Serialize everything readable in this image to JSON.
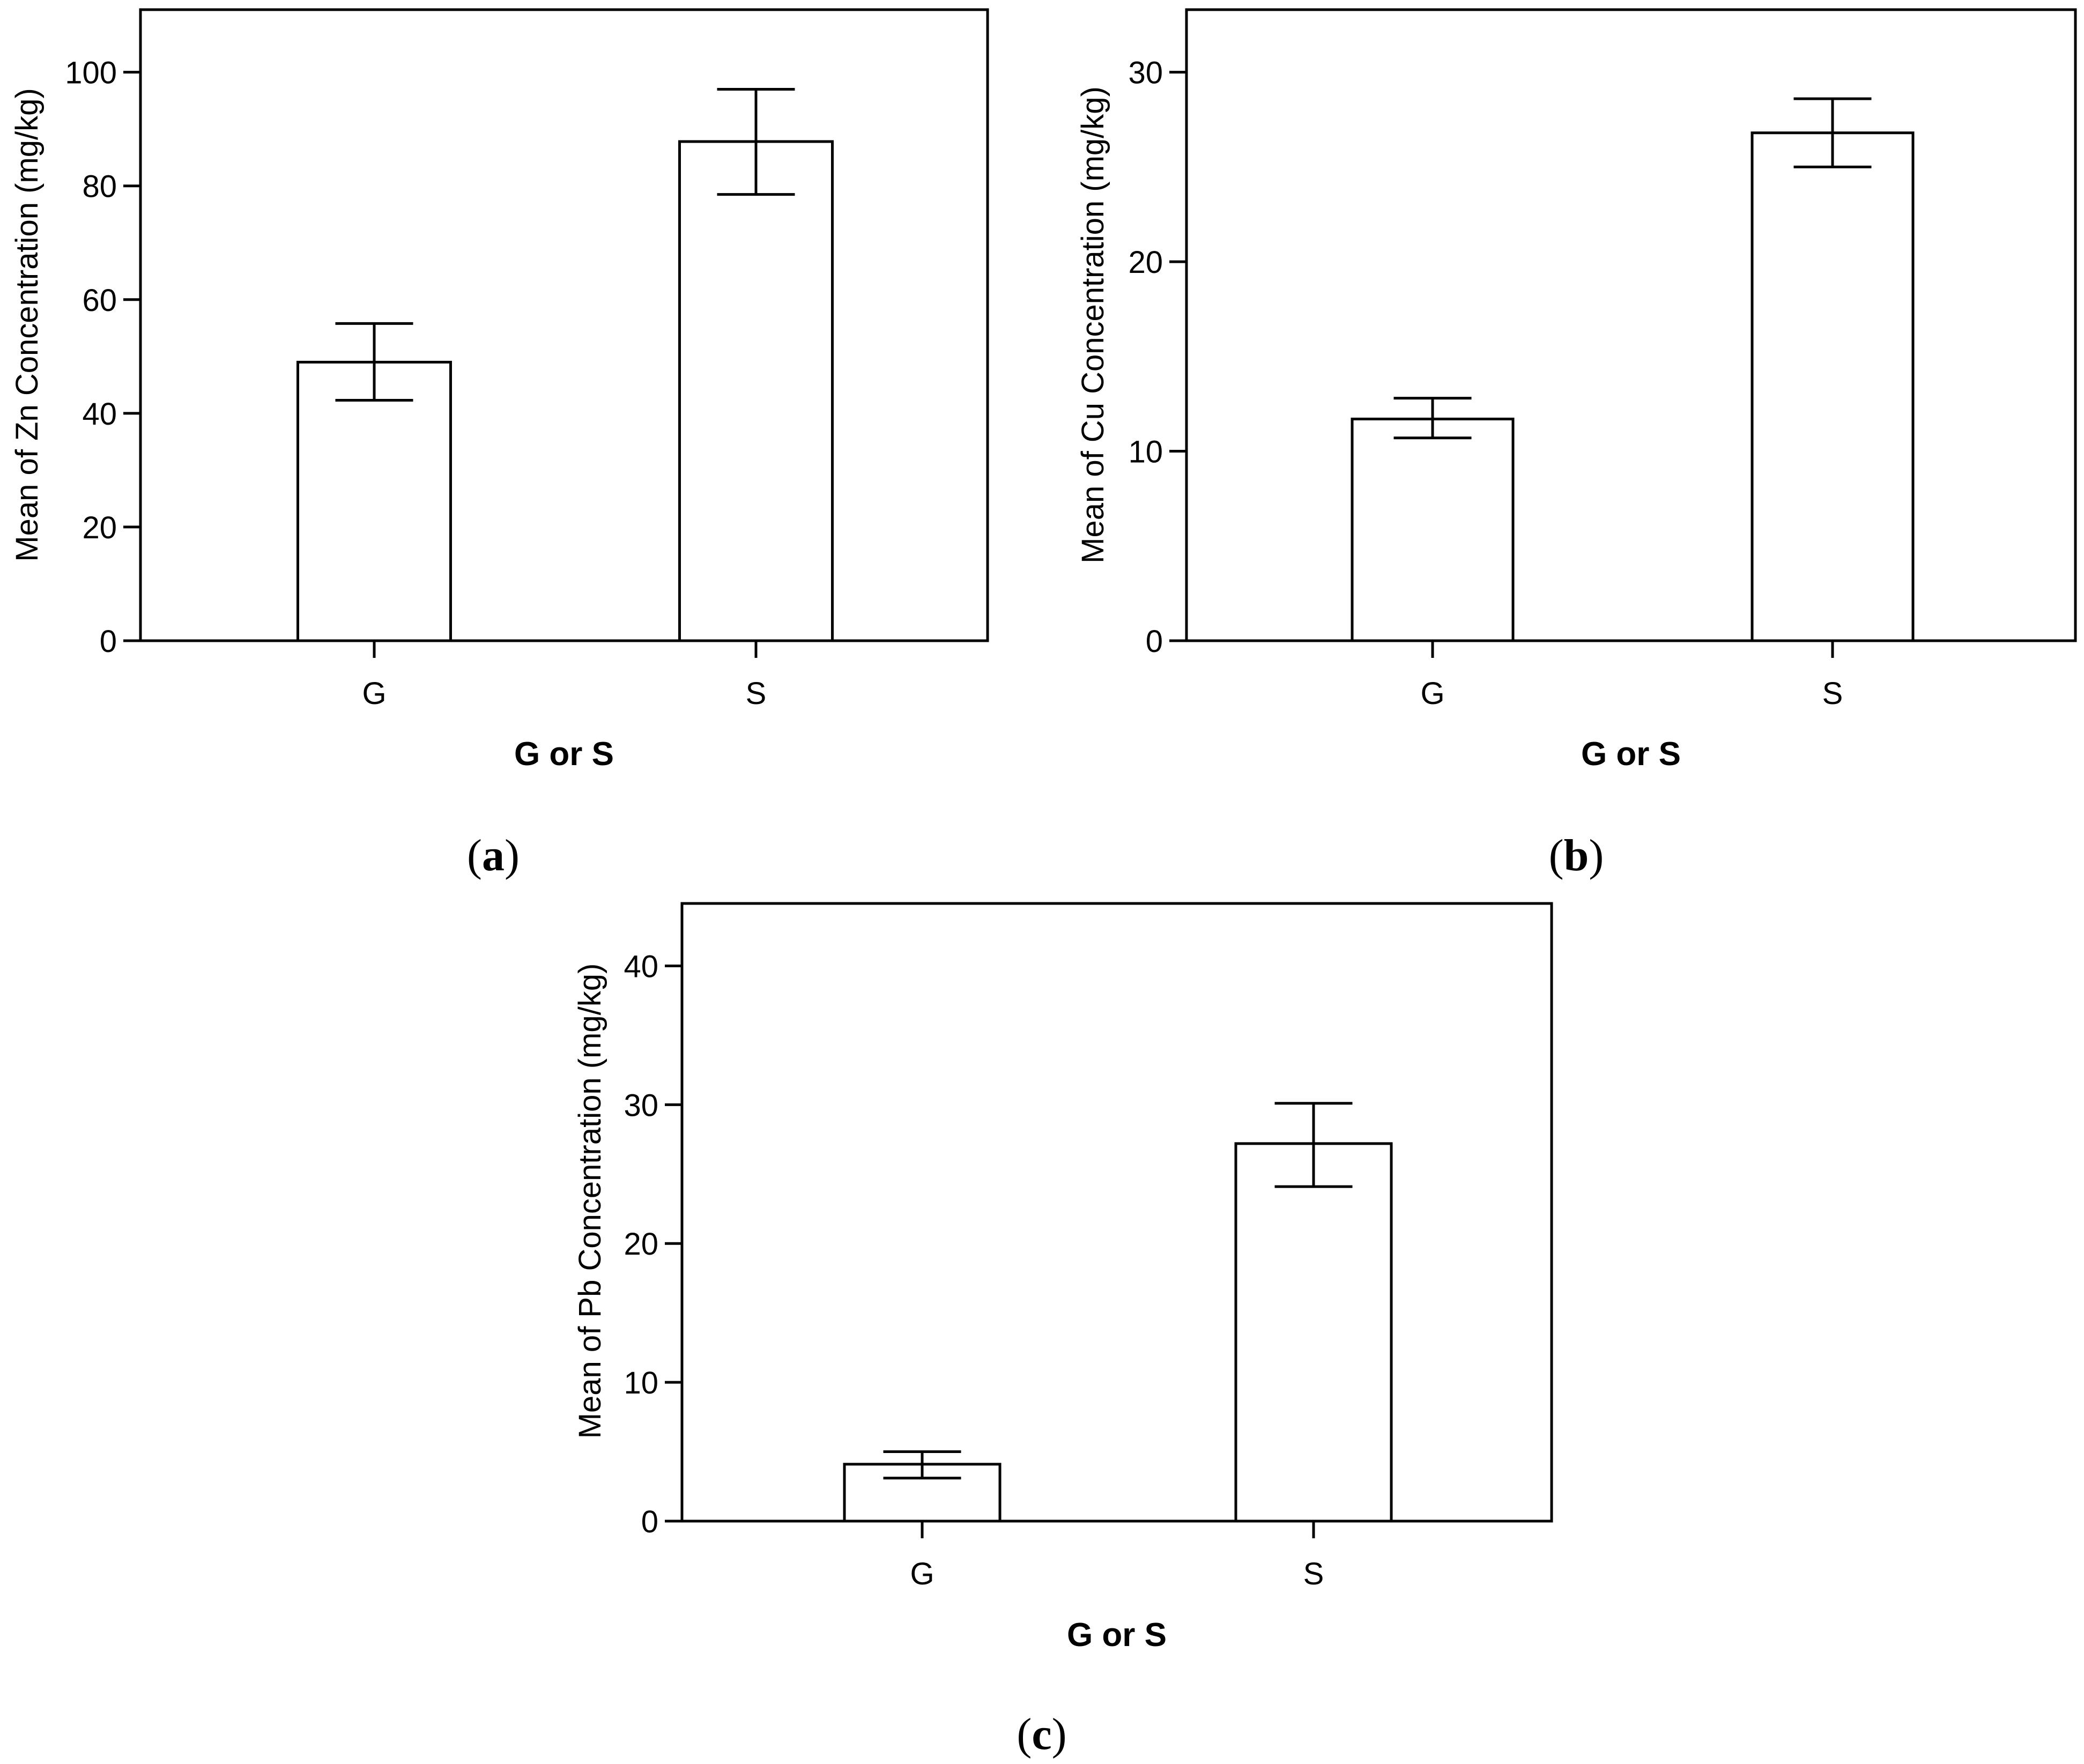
{
  "chart_data": [
    {
      "type": "bar",
      "panel_label": "a",
      "categories": [
        "G",
        "S"
      ],
      "values": [
        49.0,
        87.8
      ],
      "error_low": [
        42.3,
        78.5
      ],
      "error_high": [
        55.8,
        97.0
      ],
      "xlabel": "G or S",
      "ylabel": "Mean of Zn Concentration (mg/kg)",
      "ylim": [
        0,
        111
      ],
      "yticks": [
        "0",
        "20",
        "40",
        "60",
        "80",
        "100"
      ],
      "grid": false
    },
    {
      "type": "bar",
      "panel_label": "b",
      "categories": [
        "G",
        "S"
      ],
      "values": [
        11.7,
        26.8
      ],
      "error_low": [
        10.7,
        25.0
      ],
      "error_high": [
        12.8,
        28.6
      ],
      "xlabel": "G or S",
      "ylabel": "Mean of Cu Concentration (mg/kg)",
      "ylim": [
        0,
        33.3
      ],
      "yticks": [
        "0",
        "10",
        "20",
        "30"
      ],
      "grid": false
    },
    {
      "type": "bar",
      "panel_label": "c",
      "categories": [
        "G",
        "S"
      ],
      "values": [
        4.1,
        27.2
      ],
      "error_low": [
        3.1,
        24.1
      ],
      "error_high": [
        5.0,
        30.1
      ],
      "xlabel": "G or S",
      "ylabel": "Mean of Pb Concentration (mg/kg)",
      "ylim": [
        0,
        44.5
      ],
      "yticks": [
        "0",
        "10",
        "20",
        "30",
        "40"
      ],
      "grid": false
    }
  ]
}
